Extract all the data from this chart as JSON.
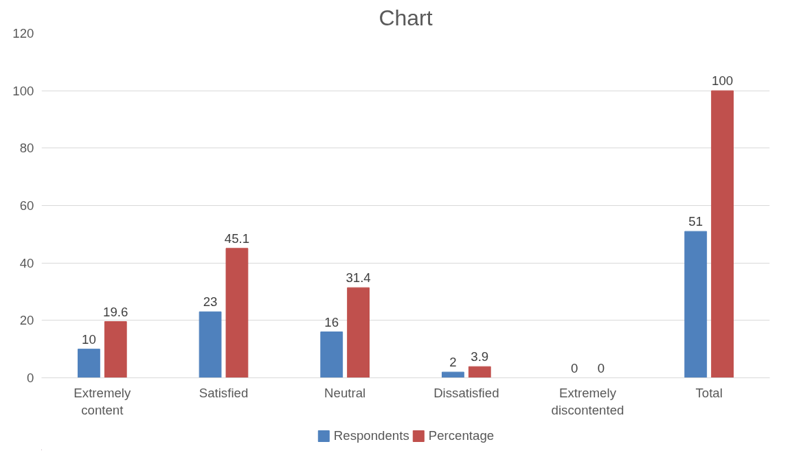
{
  "chart_data": {
    "type": "bar",
    "title": "Chart",
    "categories": [
      "Extremely content",
      "Satisfied",
      "Neutral",
      "Dissatisfied",
      "Extremely discontented",
      "Total"
    ],
    "series": [
      {
        "name": "Respondents",
        "color": "#4f81bd",
        "values": [
          10,
          23,
          16,
          2,
          0,
          51
        ]
      },
      {
        "name": "Percentage",
        "color": "#c0504d",
        "values": [
          19.6,
          45.1,
          31.4,
          3.9,
          0,
          100
        ]
      }
    ],
    "ylim": [
      0,
      120
    ],
    "yticks": [
      0,
      20,
      40,
      60,
      80,
      100,
      120
    ],
    "grid": "y",
    "legend": "bottom",
    "data_labels": true
  }
}
